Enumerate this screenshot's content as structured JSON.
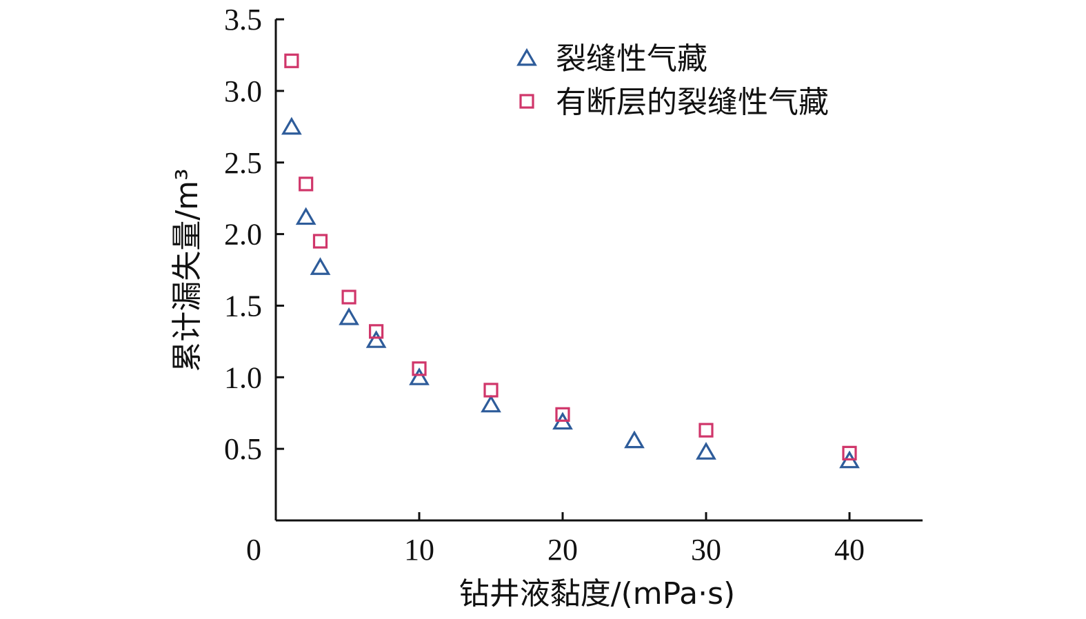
{
  "chart_data": {
    "type": "scatter",
    "xlabel": "钻井液黏度/(mPa·s)",
    "ylabel": "累计漏失量/m³",
    "xlim": [
      0,
      45
    ],
    "ylim": [
      0,
      3.5
    ],
    "x_ticks": [
      "10",
      "20",
      "30",
      "40"
    ],
    "y_ticks": [
      "0.5",
      "1.0",
      "1.5",
      "2.0",
      "2.5",
      "3.0",
      "3.5"
    ],
    "origin_label": "0",
    "legend_position": "top-right",
    "grid": false,
    "series": [
      {
        "name": "裂缝性气藏",
        "marker": "triangle",
        "color": "#2e5c9a",
        "points": [
          [
            1.1,
            2.75
          ],
          [
            2.1,
            2.12
          ],
          [
            3.1,
            1.77
          ],
          [
            5.1,
            1.42
          ],
          [
            7.0,
            1.26
          ],
          [
            10,
            1.0
          ],
          [
            15,
            0.81
          ],
          [
            20,
            0.69
          ],
          [
            25,
            0.56
          ],
          [
            30,
            0.48
          ],
          [
            40,
            0.42
          ]
        ]
      },
      {
        "name": "有断层的裂缝性气藏",
        "marker": "square",
        "color": "#d0366a",
        "points": [
          [
            1.1,
            3.21
          ],
          [
            2.1,
            2.35
          ],
          [
            3.1,
            1.95
          ],
          [
            5.1,
            1.56
          ],
          [
            7.0,
            1.32
          ],
          [
            10,
            1.06
          ],
          [
            15,
            0.91
          ],
          [
            20,
            0.74
          ],
          [
            30,
            0.63
          ],
          [
            40,
            0.47
          ]
        ]
      }
    ]
  }
}
